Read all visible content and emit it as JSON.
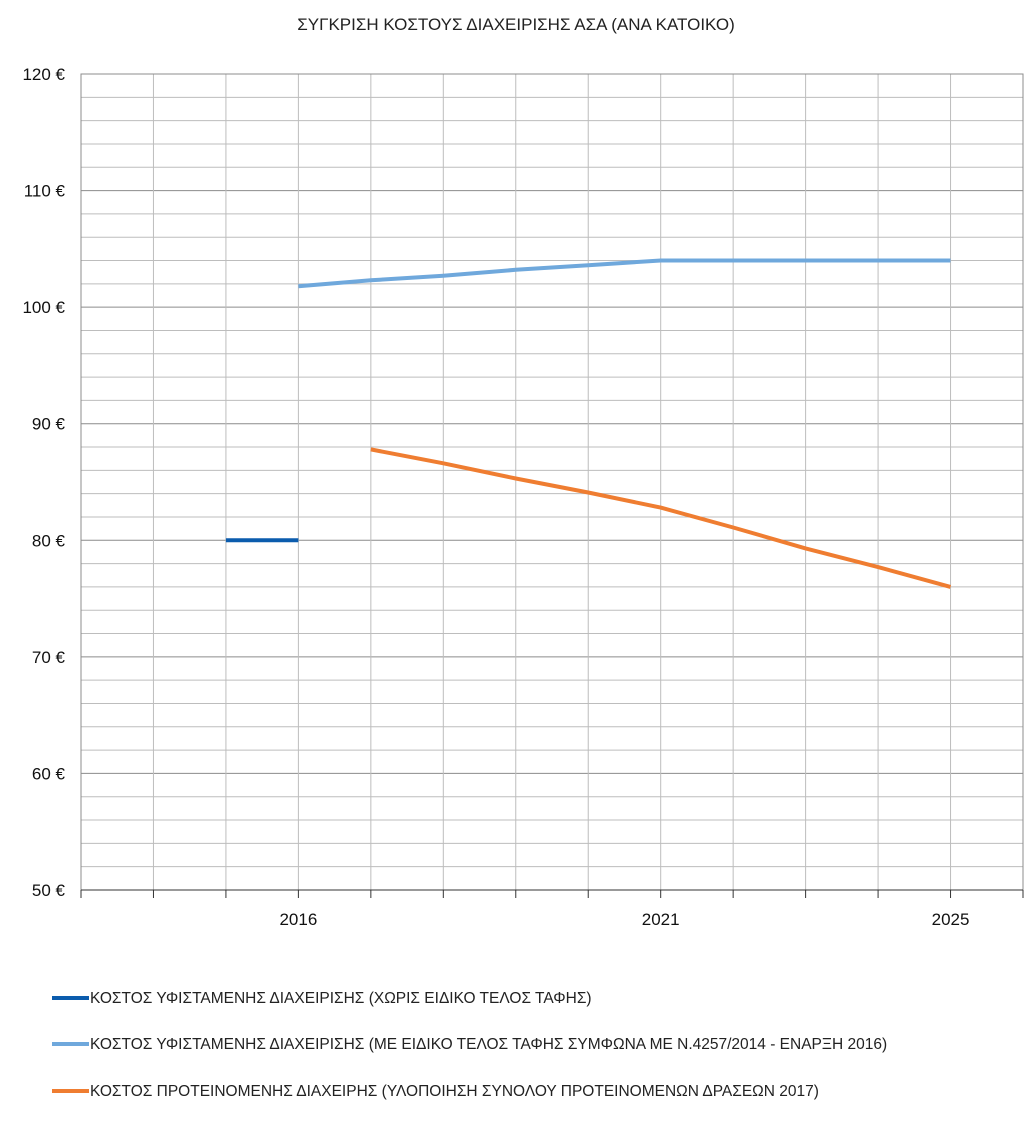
{
  "chart_data": {
    "type": "line",
    "title": "ΣΥΓΚΡΙΣΗ ΚΟΣΤΟΥΣ ΔΙΑΧΕΙΡΙΣΗΣ ΑΣΑ (ΑΝΑ ΚΑΤΟΙΚΟ)",
    "xlabel": "",
    "ylabel": "",
    "categories": [
      "2014",
      "2015",
      "2016",
      "2017",
      "2018",
      "2019",
      "2020",
      "2021",
      "2022",
      "2023",
      "2024",
      "2025"
    ],
    "x_tick_labels": [
      {
        "category": "2016",
        "label": "2016"
      },
      {
        "category": "2021",
        "label": "2021"
      },
      {
        "category": "2025",
        "label": "2025"
      }
    ],
    "ylim": [
      50,
      120
    ],
    "y_major_step": 10,
    "y_minor_step": 2,
    "y_tick_labels": [
      "50 €",
      "60 €",
      "70 €",
      "80 €",
      "90 €",
      "100 €",
      "110 €",
      "120 €"
    ],
    "grid": true,
    "legend_position": "bottom",
    "series": [
      {
        "name": "ΚΟΣΤΟΣ ΥΦΙΣΤΑΜΕΝΗΣ ΔΙΑΧΕΙΡΙΣΗΣ (ΧΩΡΙΣ ΕΙΔΙΚΟ ΤΕΛΟΣ ΤΑΦΗΣ)",
        "color": "#0b5cad",
        "values": [
          null,
          80,
          80,
          null,
          null,
          null,
          null,
          null,
          null,
          null,
          null,
          null
        ]
      },
      {
        "name": "ΚΟΣΤΟΣ ΥΦΙΣΤΑΜΕΝΗΣ ΔΙΑΧΕΙΡΙΣΗΣ (ΜΕ ΕΙΔΙΚΟ ΤΕΛΟΣ ΤΑΦΗΣ ΣΥΜΦΩΝΑ ΜΕ Ν.4257/2014 - ΕΝΑΡΞΗ 2016)",
        "color": "#6fa8dc",
        "values": [
          null,
          null,
          101.8,
          102.3,
          102.7,
          103.2,
          103.6,
          104,
          104,
          104,
          104,
          104
        ]
      },
      {
        "name": "ΚΟΣΤΟΣ ΠΡΟΤΕΙΝΟΜΕΝΗΣ ΔΙΑΧΕΙΡΗΣ (ΥΛΟΠΟΙΗΣΗ ΣΥΝΟΛΟΥ ΠΡΟΤΕΙΝΟΜΕΝΩΝ ΔΡΑΣΕΩΝ 2017)",
        "color": "#ef7d31",
        "values": [
          null,
          null,
          null,
          87.8,
          86.6,
          85.3,
          84.1,
          82.8,
          81.1,
          79.3,
          77.7,
          76
        ]
      }
    ]
  }
}
